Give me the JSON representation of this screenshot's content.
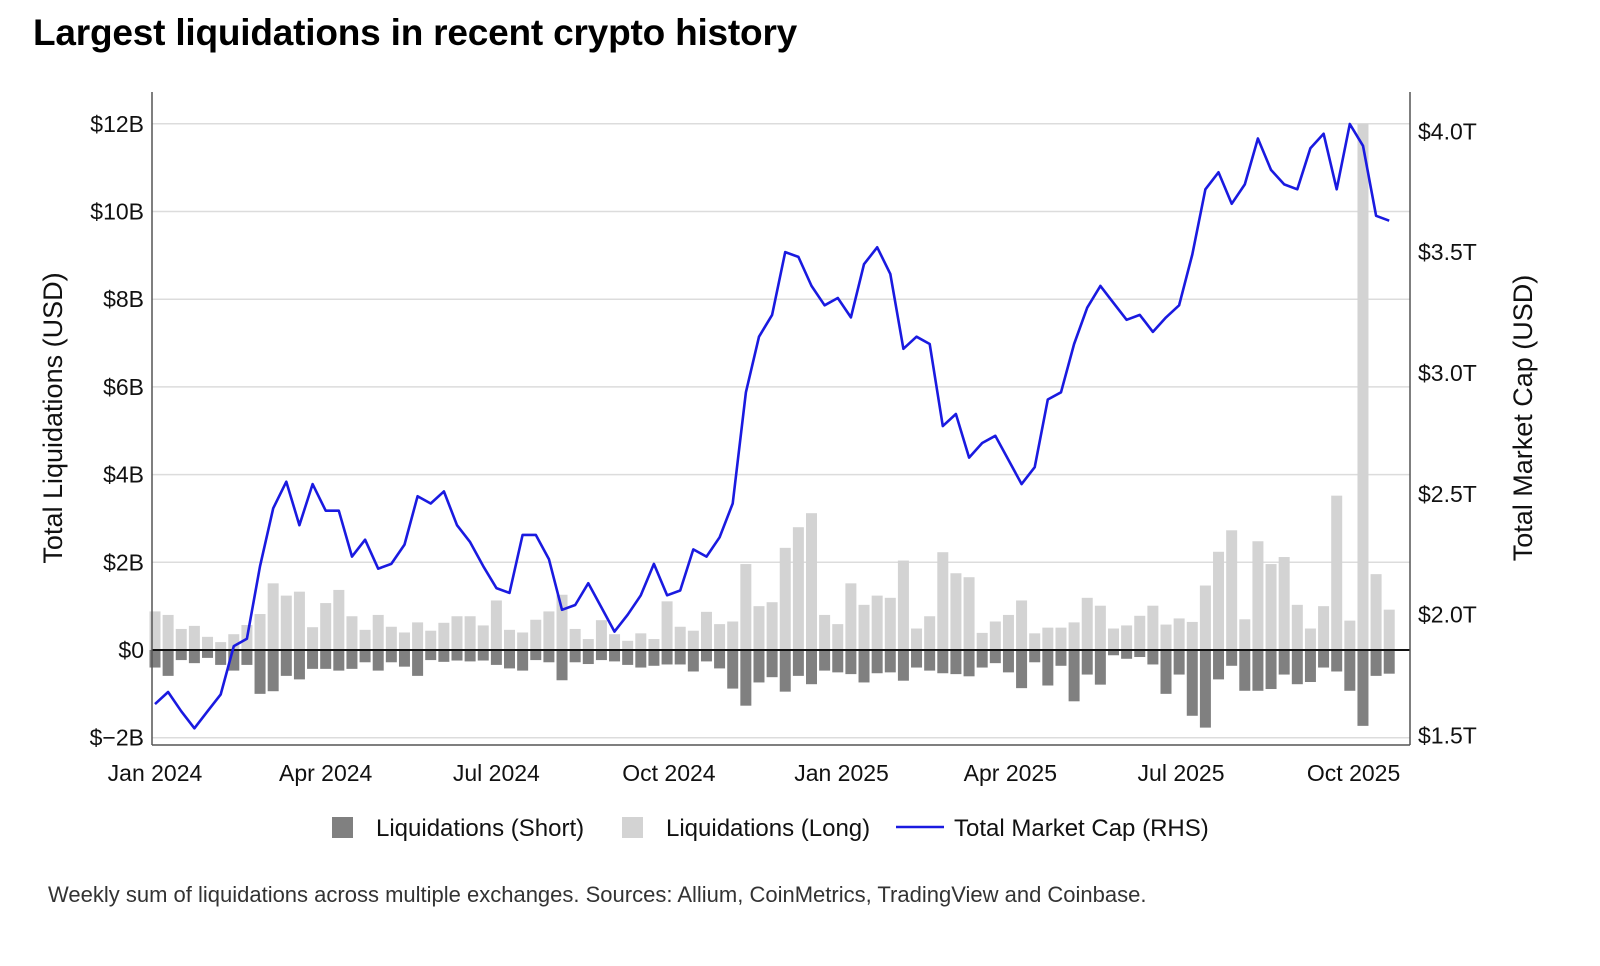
{
  "title": "Largest liquidations in recent crypto history",
  "footnote": "Weekly sum of liquidations across multiple exchanges. Sources: Allium, CoinMetrics, TradingView and Coinbase.",
  "chart_data": {
    "type": "bar+line",
    "title": "Largest liquidations in recent crypto history",
    "ylabel": "Total Liquidations (USD)",
    "y2label": "Total Market Cap (USD)",
    "ylim": [
      -2.3,
      12.6
    ],
    "y_unit": "USD billions",
    "y2lim": [
      1.45,
      4.15
    ],
    "y2_unit": "USD trillions",
    "yticks": [
      {
        "v": 12,
        "label": "$12B"
      },
      {
        "v": 10,
        "label": "$10B"
      },
      {
        "v": 8,
        "label": "$8B"
      },
      {
        "v": 6,
        "label": "$6B"
      },
      {
        "v": 4,
        "label": "$4B"
      },
      {
        "v": 2,
        "label": "$2B"
      },
      {
        "v": 0,
        "label": "$0"
      },
      {
        "v": -2,
        "label": "$−2B"
      }
    ],
    "y2ticks": [
      {
        "v": 4.0,
        "label": "$4.0T"
      },
      {
        "v": 3.5,
        "label": "$3.5T"
      },
      {
        "v": 3.0,
        "label": "$3.0T"
      },
      {
        "v": 2.5,
        "label": "$2.5T"
      },
      {
        "v": 2.0,
        "label": "$2.0T"
      },
      {
        "v": 1.5,
        "label": "$1.5T"
      }
    ],
    "xticks": [
      {
        "date": "2024-01-01",
        "label": "Jan 2024"
      },
      {
        "date": "2024-04-01",
        "label": "Apr 2024"
      },
      {
        "date": "2024-07-01",
        "label": "Jul 2024"
      },
      {
        "date": "2024-10-01",
        "label": "Oct 2024"
      },
      {
        "date": "2025-01-01",
        "label": "Jan 2025"
      },
      {
        "date": "2025-04-01",
        "label": "Apr 2025"
      },
      {
        "date": "2025-07-01",
        "label": "Jul 2025"
      },
      {
        "date": "2025-10-01",
        "label": "Oct 2025"
      }
    ],
    "grid": "horizontal",
    "legend": "bottom",
    "x": [
      "2024-01-01",
      "2024-01-08",
      "2024-01-15",
      "2024-01-22",
      "2024-01-29",
      "2024-02-05",
      "2024-02-12",
      "2024-02-19",
      "2024-02-26",
      "2024-03-04",
      "2024-03-11",
      "2024-03-18",
      "2024-03-25",
      "2024-04-01",
      "2024-04-08",
      "2024-04-15",
      "2024-04-22",
      "2024-04-29",
      "2024-05-06",
      "2024-05-13",
      "2024-05-20",
      "2024-05-27",
      "2024-06-03",
      "2024-06-10",
      "2024-06-17",
      "2024-06-24",
      "2024-07-01",
      "2024-07-08",
      "2024-07-15",
      "2024-07-22",
      "2024-07-29",
      "2024-08-05",
      "2024-08-12",
      "2024-08-19",
      "2024-08-26",
      "2024-09-02",
      "2024-09-09",
      "2024-09-16",
      "2024-09-23",
      "2024-09-30",
      "2024-10-07",
      "2024-10-14",
      "2024-10-21",
      "2024-10-28",
      "2024-11-04",
      "2024-11-11",
      "2024-11-18",
      "2024-11-25",
      "2024-12-02",
      "2024-12-09",
      "2024-12-16",
      "2024-12-23",
      "2024-12-30",
      "2025-01-06",
      "2025-01-13",
      "2025-01-20",
      "2025-01-27",
      "2025-02-03",
      "2025-02-10",
      "2025-02-17",
      "2025-02-24",
      "2025-03-03",
      "2025-03-10",
      "2025-03-17",
      "2025-03-24",
      "2025-03-31",
      "2025-04-07",
      "2025-04-14",
      "2025-04-21",
      "2025-04-28",
      "2025-05-05",
      "2025-05-12",
      "2025-05-19",
      "2025-05-26",
      "2025-06-02",
      "2025-06-09",
      "2025-06-16",
      "2025-06-23",
      "2025-06-30",
      "2025-07-07",
      "2025-07-14",
      "2025-07-21",
      "2025-07-28",
      "2025-08-04",
      "2025-08-11",
      "2025-08-18",
      "2025-08-25",
      "2025-09-01",
      "2025-09-08",
      "2025-09-15",
      "2025-09-22",
      "2025-09-29",
      "2025-10-06",
      "2025-10-13",
      "2025-10-20"
    ],
    "series": [
      {
        "name": "Liquidations (Short)",
        "kind": "bar",
        "axis": "left",
        "color": "#808080",
        "values": [
          -0.4,
          -0.59,
          -0.23,
          -0.3,
          -0.18,
          -0.34,
          -0.47,
          -0.34,
          -1.0,
          -0.94,
          -0.59,
          -0.67,
          -0.43,
          -0.43,
          -0.47,
          -0.43,
          -0.28,
          -0.47,
          -0.28,
          -0.38,
          -0.59,
          -0.23,
          -0.27,
          -0.24,
          -0.26,
          -0.24,
          -0.34,
          -0.42,
          -0.47,
          -0.23,
          -0.28,
          -0.69,
          -0.28,
          -0.32,
          -0.23,
          -0.26,
          -0.34,
          -0.4,
          -0.36,
          -0.33,
          -0.33,
          -0.49,
          -0.26,
          -0.42,
          -0.88,
          -1.27,
          -0.74,
          -0.62,
          -0.95,
          -0.59,
          -0.78,
          -0.47,
          -0.51,
          -0.55,
          -0.74,
          -0.53,
          -0.51,
          -0.7,
          -0.4,
          -0.47,
          -0.53,
          -0.55,
          -0.6,
          -0.4,
          -0.3,
          -0.51,
          -0.87,
          -0.28,
          -0.81,
          -0.36,
          -1.17,
          -0.56,
          -0.79,
          -0.12,
          -0.2,
          -0.16,
          -0.33,
          -1.0,
          -0.56,
          -1.5,
          -1.77,
          -0.67,
          -0.36,
          -0.93,
          -0.93,
          -0.89,
          -0.56,
          -0.78,
          -0.73,
          -0.4,
          -0.49,
          -0.93,
          -1.73,
          -0.59,
          -0.54
        ]
      },
      {
        "name": "Liquidations (Long)",
        "kind": "bar",
        "axis": "left",
        "color": "#d3d3d3",
        "values": [
          0.88,
          0.8,
          0.48,
          0.55,
          0.3,
          0.18,
          0.36,
          0.57,
          0.82,
          1.52,
          1.24,
          1.33,
          0.52,
          1.07,
          1.37,
          0.77,
          0.46,
          0.8,
          0.53,
          0.4,
          0.63,
          0.44,
          0.62,
          0.77,
          0.77,
          0.56,
          1.13,
          0.46,
          0.4,
          0.69,
          0.88,
          1.26,
          0.48,
          0.25,
          0.68,
          0.36,
          0.21,
          0.38,
          0.25,
          1.11,
          0.53,
          0.44,
          0.87,
          0.59,
          0.65,
          1.96,
          1.0,
          1.09,
          2.33,
          2.8,
          3.12,
          0.8,
          0.59,
          1.52,
          1.03,
          1.24,
          1.19,
          2.04,
          0.49,
          0.77,
          2.23,
          1.75,
          1.66,
          0.39,
          0.65,
          0.8,
          1.13,
          0.38,
          0.51,
          0.51,
          0.63,
          1.19,
          1.01,
          0.49,
          0.56,
          0.78,
          1.01,
          0.58,
          0.72,
          0.64,
          1.47,
          2.24,
          2.73,
          0.7,
          2.48,
          1.96,
          2.12,
          1.03,
          0.49,
          1.0,
          3.52,
          0.67,
          12.0,
          1.73,
          0.92
        ]
      },
      {
        "name": "Total Market Cap (RHS)",
        "kind": "line",
        "axis": "right",
        "color": "#1a1ae0",
        "values": [
          1.63,
          1.68,
          1.6,
          1.53,
          1.6,
          1.67,
          1.87,
          1.9,
          2.2,
          2.44,
          2.55,
          2.37,
          2.54,
          2.43,
          2.43,
          2.24,
          2.31,
          2.19,
          2.21,
          2.29,
          2.49,
          2.46,
          2.51,
          2.37,
          2.3,
          2.2,
          2.11,
          2.09,
          2.33,
          2.33,
          2.23,
          2.02,
          2.04,
          2.13,
          2.03,
          1.93,
          2.0,
          2.08,
          2.21,
          2.08,
          2.1,
          2.27,
          2.24,
          2.32,
          2.46,
          2.92,
          3.15,
          3.24,
          3.5,
          3.48,
          3.36,
          3.28,
          3.31,
          3.23,
          3.45,
          3.52,
          3.41,
          3.1,
          3.15,
          3.12,
          2.78,
          2.83,
          2.65,
          2.71,
          2.74,
          2.64,
          2.54,
          2.61,
          2.89,
          2.92,
          3.12,
          3.27,
          3.36,
          3.29,
          3.22,
          3.24,
          3.17,
          3.23,
          3.28,
          3.49,
          3.76,
          3.83,
          3.7,
          3.78,
          3.97,
          3.84,
          3.78,
          3.76,
          3.93,
          3.99,
          3.76,
          4.03,
          3.94,
          3.65,
          3.63
        ]
      }
    ]
  }
}
